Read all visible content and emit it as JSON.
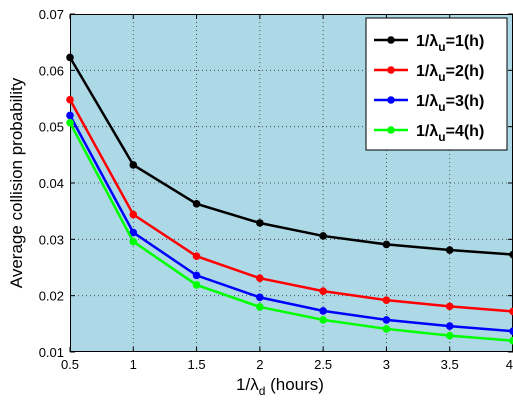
{
  "chart_data": {
    "type": "line",
    "x": [
      0.5,
      1,
      1.5,
      2,
      2.5,
      3,
      3.5,
      4
    ],
    "xlim": [
      0.5,
      4
    ],
    "ylim": [
      0.01,
      0.07
    ],
    "xticks": [
      0.5,
      1,
      1.5,
      2,
      2.5,
      3,
      3.5,
      4
    ],
    "yticks": [
      0.01,
      0.02,
      0.03,
      0.04,
      0.05,
      0.06,
      0.07
    ],
    "xtick_labels": [
      "0.5",
      "1",
      "1.5",
      "2",
      "2.5",
      "3",
      "3.5",
      "4"
    ],
    "ytick_labels": [
      "0.01",
      "0.02",
      "0.03",
      "0.04",
      "0.05",
      "0.06",
      "0.07"
    ],
    "xlabel": {
      "prefix": "1/λ",
      "sub": "d",
      "suffix": " (hours)"
    },
    "ylabel": "Average collision probability",
    "grid": true,
    "legend_position": "top-right",
    "plot_background": "#add8e6",
    "series": [
      {
        "legend_prefix": "1/λ",
        "legend_sub": "u",
        "legend_suffix": "=1(h)",
        "color": "#000000",
        "values": [
          0.0623,
          0.0432,
          0.0363,
          0.0329,
          0.0306,
          0.0291,
          0.0281,
          0.0273
        ]
      },
      {
        "legend_prefix": "1/λ",
        "legend_sub": "u",
        "legend_suffix": "=2(h)",
        "color": "#ff0000",
        "values": [
          0.0548,
          0.0344,
          0.027,
          0.0231,
          0.0208,
          0.0192,
          0.0181,
          0.0172
        ]
      },
      {
        "legend_prefix": "1/λ",
        "legend_sub": "u",
        "legend_suffix": "=3(h)",
        "color": "#0000ff",
        "values": [
          0.052,
          0.0312,
          0.0236,
          0.0197,
          0.0173,
          0.0157,
          0.0146,
          0.0137
        ]
      },
      {
        "legend_prefix": "1/λ",
        "legend_sub": "u",
        "legend_suffix": "=4(h)",
        "color": "#00ff00",
        "values": [
          0.0507,
          0.0296,
          0.0219,
          0.018,
          0.0157,
          0.0141,
          0.0129,
          0.012
        ]
      }
    ]
  }
}
